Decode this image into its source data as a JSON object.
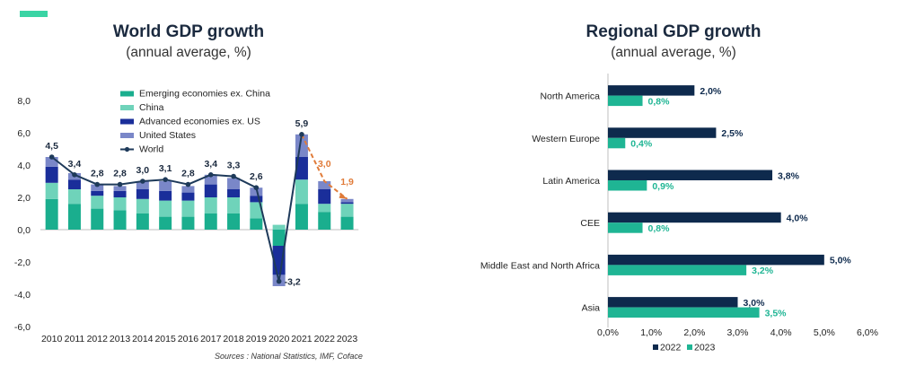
{
  "left_chart": {
    "title": "World GDP growth",
    "subtitle": "(annual average, %)"
  },
  "right_chart": {
    "title": "Regional GDP growth",
    "subtitle": "(annual average, %)"
  },
  "source": "Sources : National Statistics, IMF, Coface",
  "colors": {
    "emerging": "#1aae8e",
    "china": "#6fd3ba",
    "advanced": "#1a2e9a",
    "us": "#7a87c8",
    "world_line": "#1e3a5a",
    "forecast": "#e07b39",
    "bar2022": "#0e2a4d",
    "bar2023": "#1fb594"
  },
  "chart_data": [
    {
      "type": "bar",
      "stacked": true,
      "categories": [
        "2010",
        "2011",
        "2012",
        "2013",
        "2014",
        "2015",
        "2016",
        "2017",
        "2018",
        "2019",
        "2020",
        "2021",
        "2022",
        "2023"
      ],
      "series": [
        {
          "name": "Emerging economies ex. China",
          "values": [
            1.9,
            1.6,
            1.3,
            1.2,
            1.0,
            0.8,
            0.8,
            1.0,
            1.0,
            0.7,
            -1.0,
            1.6,
            1.1,
            0.8
          ]
        },
        {
          "name": "China",
          "values": [
            1.0,
            0.9,
            0.8,
            0.8,
            0.9,
            1.0,
            1.0,
            1.0,
            1.0,
            1.0,
            0.3,
            1.5,
            0.5,
            0.8
          ]
        },
        {
          "name": "Advanced economies ex. US",
          "values": [
            1.0,
            0.6,
            0.3,
            0.4,
            0.6,
            0.6,
            0.5,
            0.8,
            0.5,
            0.4,
            -1.8,
            1.4,
            0.9,
            0.1
          ]
        },
        {
          "name": "United States",
          "values": [
            0.6,
            0.4,
            0.4,
            0.3,
            0.5,
            0.6,
            0.4,
            0.6,
            0.7,
            0.5,
            -0.7,
            1.4,
            0.5,
            0.2
          ]
        }
      ],
      "line": {
        "name": "World",
        "values": [
          4.5,
          3.4,
          2.8,
          2.8,
          3.0,
          3.1,
          2.8,
          3.4,
          3.3,
          2.6,
          -3.2,
          5.9,
          3.0,
          1.9
        ],
        "labels": [
          "4,5",
          "3,4",
          "2,8",
          "2,8",
          "3,0",
          "3,1",
          "2,8",
          "3,4",
          "3,3",
          "2,6",
          "-3,2",
          "5,9",
          "3,0",
          "1,9"
        ],
        "forecast_from_index": 11
      },
      "yticks": [
        "8,0",
        "6,0",
        "4,0",
        "2,0",
        "0,0",
        "-2,0",
        "-4,0",
        "-6,0"
      ],
      "ylim": [
        -6,
        8
      ],
      "legend_position": "top-center"
    },
    {
      "type": "bar",
      "orientation": "horizontal",
      "categories": [
        "North America",
        "Western Europe",
        "Latin America",
        "CEE",
        "Middle East and North Africa",
        "Asia"
      ],
      "series": [
        {
          "name": "2022",
          "values": [
            2.0,
            2.5,
            3.8,
            4.0,
            5.0,
            3.0
          ],
          "labels": [
            "2,0%",
            "2,5%",
            "3,8%",
            "4,0%",
            "5,0%",
            "3,0%"
          ]
        },
        {
          "name": "2023",
          "values": [
            0.8,
            0.4,
            0.9,
            0.8,
            3.2,
            3.5
          ],
          "labels": [
            "0,8%",
            "0,4%",
            "0,9%",
            "0,8%",
            "3,2%",
            "3,5%"
          ]
        }
      ],
      "xticks": [
        "0,0%",
        "1,0%",
        "2,0%",
        "3,0%",
        "4,0%",
        "5,0%",
        "6,0%"
      ],
      "xlim": [
        0,
        6
      ],
      "legend_position": "bottom-center"
    }
  ]
}
